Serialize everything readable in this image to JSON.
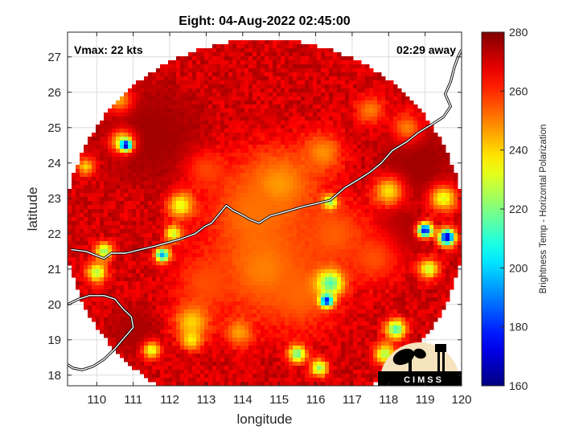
{
  "chart_data": {
    "type": "heatmap",
    "title": "Eight: 04-Aug-2022 02:45:00",
    "annotations": {
      "vmax": "Vmax: 22 kts",
      "time_away": "02:29 away"
    },
    "xlabel": "longitude",
    "ylabel": "latitude",
    "xlim": [
      109.2,
      120.0
    ],
    "ylim": [
      17.7,
      27.7
    ],
    "xticks": [
      110,
      111,
      112,
      113,
      114,
      115,
      116,
      117,
      118,
      119,
      120
    ],
    "yticks": [
      18,
      19,
      20,
      21,
      22,
      23,
      24,
      25,
      26,
      27
    ],
    "grid": true,
    "data_region": {
      "shape": "circle",
      "center_lon": 114.6,
      "center_lat": 22.2,
      "radius_deg_lon": 5.45,
      "radius_deg_lat": 5.3
    },
    "colorbar": {
      "label": "Brightness Temp - Horizontal Polarization",
      "range": [
        160,
        280
      ],
      "ticks": [
        160,
        180,
        200,
        220,
        240,
        260,
        280
      ],
      "colormap": "jet"
    },
    "background_value": 270,
    "features": [
      {
        "lon": 115.0,
        "lat": 23.4,
        "radius": 1.3,
        "value": 247
      },
      {
        "lon": 114.3,
        "lat": 22.6,
        "radius": 1.6,
        "value": 252
      },
      {
        "lon": 114.6,
        "lat": 21.0,
        "radius": 1.6,
        "value": 250
      },
      {
        "lon": 115.6,
        "lat": 20.3,
        "radius": 1.3,
        "value": 253
      },
      {
        "lon": 113.0,
        "lat": 20.6,
        "radius": 1.1,
        "value": 256
      },
      {
        "lon": 116.5,
        "lat": 22.0,
        "radius": 1.2,
        "value": 254
      },
      {
        "lon": 117.6,
        "lat": 21.3,
        "radius": 0.9,
        "value": 256
      },
      {
        "lon": 112.6,
        "lat": 19.5,
        "radius": 0.6,
        "value": 240
      },
      {
        "lon": 113.9,
        "lat": 19.2,
        "radius": 0.5,
        "value": 246
      },
      {
        "lon": 116.2,
        "lat": 24.3,
        "radius": 0.7,
        "value": 248
      },
      {
        "lon": 113.0,
        "lat": 23.8,
        "radius": 0.7,
        "value": 257
      },
      {
        "lon": 116.4,
        "lat": 20.6,
        "radius": 0.45,
        "value": 214
      },
      {
        "lon": 116.3,
        "lat": 20.1,
        "radius": 0.22,
        "value": 174
      },
      {
        "lon": 110.7,
        "lat": 24.6,
        "radius": 0.4,
        "value": 232
      },
      {
        "lon": 110.8,
        "lat": 24.5,
        "radius": 0.18,
        "value": 165
      },
      {
        "lon": 111.8,
        "lat": 21.4,
        "radius": 0.25,
        "value": 195
      },
      {
        "lon": 112.3,
        "lat": 22.8,
        "radius": 0.45,
        "value": 232
      },
      {
        "lon": 112.1,
        "lat": 22.0,
        "radius": 0.3,
        "value": 228
      },
      {
        "lon": 110.2,
        "lat": 21.5,
        "radius": 0.3,
        "value": 222
      },
      {
        "lon": 110.0,
        "lat": 20.9,
        "radius": 0.35,
        "value": 226
      },
      {
        "lon": 111.5,
        "lat": 18.7,
        "radius": 0.3,
        "value": 230
      },
      {
        "lon": 112.6,
        "lat": 19.0,
        "radius": 0.35,
        "value": 236
      },
      {
        "lon": 115.5,
        "lat": 18.6,
        "radius": 0.3,
        "value": 216
      },
      {
        "lon": 116.1,
        "lat": 18.2,
        "radius": 0.3,
        "value": 222
      },
      {
        "lon": 118.2,
        "lat": 19.3,
        "radius": 0.35,
        "value": 214
      },
      {
        "lon": 117.9,
        "lat": 18.6,
        "radius": 0.35,
        "value": 224
      },
      {
        "lon": 119.0,
        "lat": 22.1,
        "radius": 0.25,
        "value": 172
      },
      {
        "lon": 119.6,
        "lat": 21.9,
        "radius": 0.28,
        "value": 166
      },
      {
        "lon": 119.1,
        "lat": 21.0,
        "radius": 0.35,
        "value": 228
      },
      {
        "lon": 119.5,
        "lat": 23.0,
        "radius": 0.45,
        "value": 232
      },
      {
        "lon": 118.0,
        "lat": 23.2,
        "radius": 0.5,
        "value": 238
      },
      {
        "lon": 109.7,
        "lat": 23.9,
        "radius": 0.3,
        "value": 240
      },
      {
        "lon": 110.6,
        "lat": 25.8,
        "radius": 0.45,
        "value": 245
      },
      {
        "lon": 117.5,
        "lat": 25.5,
        "radius": 0.5,
        "value": 250
      },
      {
        "lon": 118.5,
        "lat": 25.0,
        "radius": 0.5,
        "value": 250
      },
      {
        "lon": 116.4,
        "lat": 22.9,
        "radius": 0.25,
        "value": 222
      }
    ],
    "dark_zones": [
      {
        "lon": 111.5,
        "lat": 24.8,
        "radius": 1.9,
        "value": 276
      },
      {
        "lon": 118.8,
        "lat": 24.0,
        "radius": 1.4,
        "value": 276
      },
      {
        "lon": 118.3,
        "lat": 22.0,
        "radius": 0.9,
        "value": 275
      },
      {
        "lon": 111.0,
        "lat": 19.3,
        "radius": 0.9,
        "value": 275
      }
    ],
    "coastline": [
      [
        [
          109.3,
          21.55
        ],
        [
          109.7,
          21.5
        ],
        [
          109.95,
          21.4
        ],
        [
          110.2,
          21.3
        ],
        [
          110.4,
          21.45
        ],
        [
          110.8,
          21.45
        ],
        [
          111.2,
          21.55
        ],
        [
          111.6,
          21.65
        ],
        [
          111.95,
          21.75
        ],
        [
          112.3,
          21.85
        ],
        [
          112.7,
          22.0
        ],
        [
          112.95,
          22.2
        ],
        [
          113.15,
          22.3
        ],
        [
          113.35,
          22.55
        ],
        [
          113.55,
          22.8
        ],
        [
          113.75,
          22.65
        ],
        [
          113.95,
          22.55
        ],
        [
          114.2,
          22.4
        ],
        [
          114.45,
          22.3
        ],
        [
          114.75,
          22.5
        ],
        [
          115.1,
          22.6
        ],
        [
          115.6,
          22.75
        ],
        [
          116.0,
          22.85
        ],
        [
          116.4,
          22.95
        ],
        [
          116.8,
          23.3
        ],
        [
          117.2,
          23.55
        ],
        [
          117.5,
          23.75
        ],
        [
          117.8,
          24.0
        ],
        [
          118.1,
          24.35
        ],
        [
          118.5,
          24.6
        ],
        [
          118.8,
          24.85
        ],
        [
          119.2,
          25.1
        ],
        [
          119.5,
          25.3
        ],
        [
          119.7,
          25.6
        ],
        [
          119.55,
          25.95
        ],
        [
          119.7,
          26.3
        ],
        [
          119.8,
          26.7
        ],
        [
          119.9,
          27.0
        ],
        [
          120.0,
          27.2
        ]
      ],
      [
        [
          109.2,
          20.0
        ],
        [
          109.5,
          20.15
        ],
        [
          109.8,
          20.25
        ],
        [
          110.2,
          20.25
        ],
        [
          110.5,
          20.15
        ],
        [
          110.7,
          19.9
        ],
        [
          110.95,
          19.65
        ],
        [
          111.0,
          19.35
        ],
        [
          110.75,
          19.05
        ],
        [
          110.5,
          18.75
        ],
        [
          110.2,
          18.45
        ],
        [
          109.9,
          18.25
        ],
        [
          109.6,
          18.15
        ],
        [
          109.35,
          18.2
        ],
        [
          109.2,
          18.3
        ]
      ]
    ],
    "logo_text": "CIMSS"
  }
}
